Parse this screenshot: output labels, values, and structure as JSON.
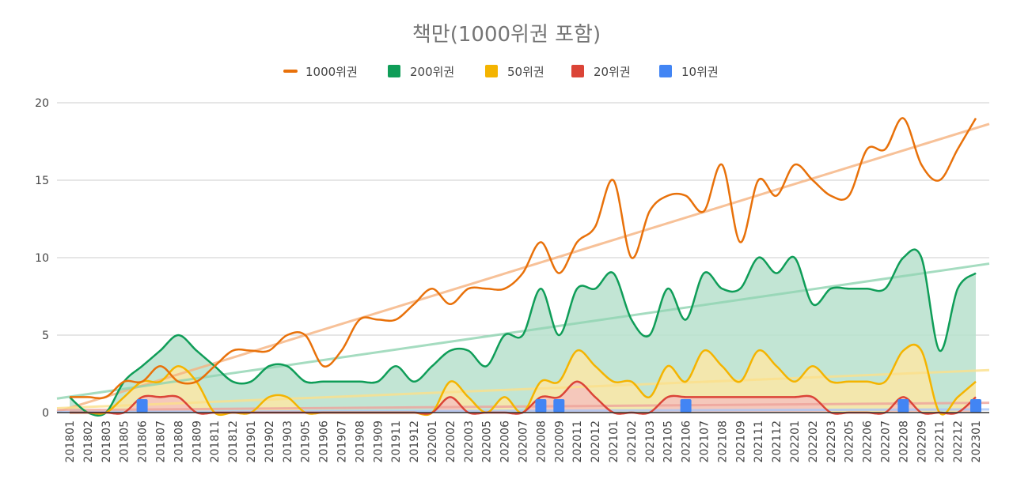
{
  "chart_data": {
    "type": "area",
    "title": "책만(1000위권 포함)",
    "xlabel": "",
    "ylabel": "",
    "ylim": [
      0,
      20
    ],
    "yticks": [
      0,
      5,
      10,
      15,
      20
    ],
    "legend_position": "top",
    "grid": true,
    "categories": [
      "201801",
      "201802",
      "201803",
      "201805",
      "201806",
      "201807",
      "201808",
      "201809",
      "201811",
      "201812",
      "201901",
      "201902",
      "201903",
      "201905",
      "201906",
      "201907",
      "201908",
      "201909",
      "201911",
      "201912",
      "202001",
      "202002",
      "202003",
      "202005",
      "202006",
      "202007",
      "202008",
      "202009",
      "202011",
      "202012",
      "202101",
      "202102",
      "202103",
      "202105",
      "202106",
      "202107",
      "202108",
      "202109",
      "202111",
      "202112",
      "202201",
      "202202",
      "202203",
      "202205",
      "202206",
      "202207",
      "202208",
      "202209",
      "202211",
      "202212",
      "202301"
    ],
    "series": [
      {
        "name": "1000위권",
        "type": "line",
        "color": "#e8710a",
        "trend_color": "#f5b27e",
        "values": [
          1,
          1,
          1,
          2,
          2,
          3,
          2,
          2,
          3,
          4,
          4,
          4,
          5,
          5,
          3,
          4,
          6,
          6,
          6,
          7,
          8,
          7,
          8,
          8,
          8,
          9,
          11,
          9,
          11,
          12,
          15,
          10,
          13,
          14,
          14,
          13,
          16,
          11,
          15,
          14,
          16,
          15,
          14,
          14,
          17,
          17,
          19,
          16,
          15,
          17,
          19
        ]
      },
      {
        "name": "200위권",
        "type": "area",
        "color": "#0f9d58",
        "fill": "#b7e1cd",
        "trend_color": "#8fd3b0",
        "values": [
          1,
          0,
          0,
          2,
          3,
          4,
          5,
          4,
          3,
          2,
          2,
          3,
          3,
          2,
          2,
          2,
          2,
          2,
          3,
          2,
          3,
          4,
          4,
          3,
          5,
          5,
          8,
          5,
          8,
          8,
          9,
          6,
          5,
          8,
          6,
          9,
          8,
          8,
          10,
          9,
          10,
          7,
          8,
          8,
          8,
          8,
          10,
          10,
          4,
          8,
          9
        ]
      },
      {
        "name": "50위권",
        "type": "area",
        "color": "#f4b400",
        "fill": "#fce8a6",
        "trend_color": "#fbe08a",
        "values": [
          0,
          0,
          0,
          1,
          2,
          2,
          3,
          2,
          0,
          0,
          0,
          1,
          1,
          0,
          0,
          0,
          0,
          0,
          0,
          0,
          0,
          2,
          1,
          0,
          1,
          0,
          2,
          2,
          4,
          3,
          2,
          2,
          1,
          3,
          2,
          4,
          3,
          2,
          4,
          3,
          2,
          3,
          2,
          2,
          2,
          2,
          4,
          4,
          0,
          1,
          2
        ]
      },
      {
        "name": "20위권",
        "type": "area",
        "color": "#db4437",
        "fill": "#f4c2bd",
        "trend_color": "#eda39b",
        "values": [
          0,
          0,
          0,
          0,
          1,
          1,
          1,
          0,
          0,
          0,
          0,
          0,
          0,
          0,
          0,
          0,
          0,
          0,
          0,
          0,
          0,
          1,
          0,
          0,
          0,
          0,
          1,
          1,
          2,
          1,
          0,
          0,
          0,
          1,
          1,
          1,
          1,
          1,
          1,
          1,
          1,
          1,
          0,
          0,
          0,
          0,
          1,
          0,
          0,
          0,
          1
        ]
      },
      {
        "name": "10위권",
        "type": "bar",
        "color": "#4285f4",
        "trend_color": "#a8c4f7",
        "values": [
          0,
          0,
          0,
          0,
          1,
          0,
          0,
          0,
          0,
          0,
          0,
          0,
          0,
          0,
          0,
          0,
          0,
          0,
          0,
          0,
          0,
          0,
          0,
          0,
          0,
          0,
          1,
          1,
          0,
          0,
          0,
          0,
          0,
          0,
          1,
          0,
          0,
          0,
          0,
          0,
          0,
          0,
          0,
          0,
          0,
          0,
          1,
          0,
          0,
          0,
          1
        ]
      }
    ]
  }
}
